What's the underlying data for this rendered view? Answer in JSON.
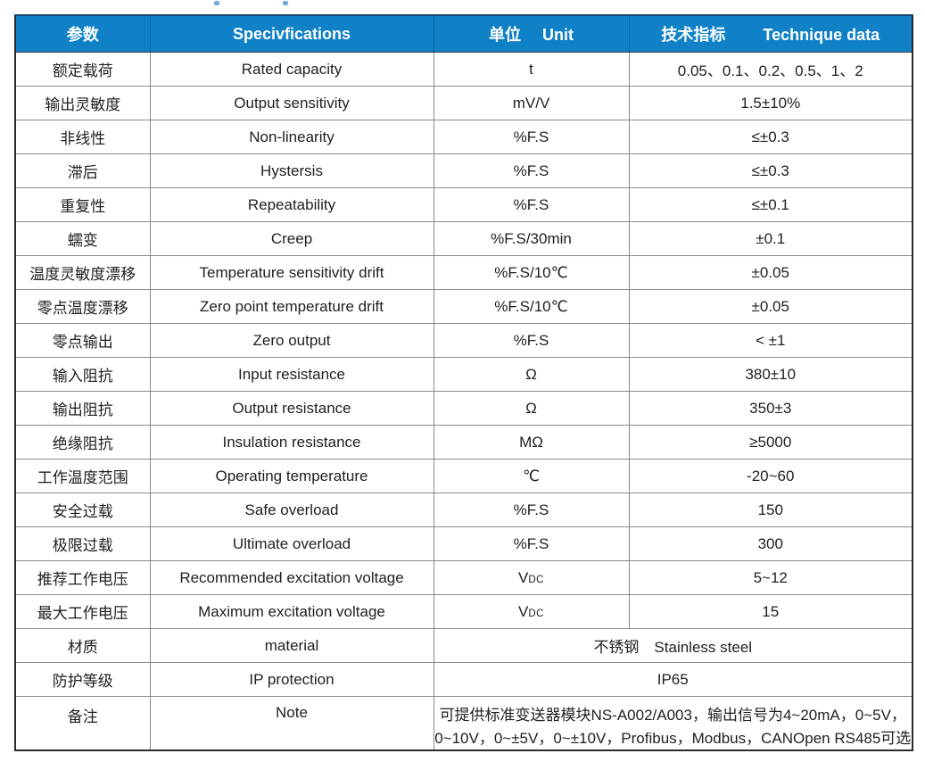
{
  "table": {
    "colors": {
      "header_bg": "#1081c6",
      "header_text": "#ffffff",
      "border_outer": "#2b2b2b",
      "border_inner": "#8a8a8a",
      "body_text": "#212121"
    },
    "header": {
      "param_zh": "参数",
      "spec_en": "Specivfications",
      "unit_zh": "单位",
      "unit_en": "Unit",
      "tech_zh": "技术指标",
      "tech_en": "Technique data"
    },
    "rows": [
      {
        "zh": "额定载荷",
        "en": "Rated capacity",
        "unit": "t",
        "value": "0.05、0.1、0.2、0.5、1、2"
      },
      {
        "zh": "输出灵敏度",
        "en": "Output sensitivity",
        "unit": "mV/V",
        "value": "1.5±10%"
      },
      {
        "zh": "非线性",
        "en": "Non-linearity",
        "unit": "%F.S",
        "value": "≤±0.3"
      },
      {
        "zh": "滞后",
        "en": "Hystersis",
        "unit": "%F.S",
        "value": "≤±0.3"
      },
      {
        "zh": "重复性",
        "en": "Repeatability",
        "unit": "%F.S",
        "value": "≤±0.1"
      },
      {
        "zh": "蠕变",
        "en": "Creep",
        "unit": "%F.S/30min",
        "value": "±0.1"
      },
      {
        "zh": "温度灵敏度漂移",
        "en": "Temperature sensitivity drift",
        "unit": "%F.S/10℃",
        "value": "±0.05"
      },
      {
        "zh": "零点温度漂移",
        "en": "Zero point temperature drift",
        "unit": "%F.S/10℃",
        "value": "±0.05"
      },
      {
        "zh": "零点输出",
        "en": "Zero output",
        "unit": "%F.S",
        "value": "< ±1"
      },
      {
        "zh": "输入阻抗",
        "en": "Input resistance",
        "unit": "Ω",
        "value": "380±10"
      },
      {
        "zh": "输出阻抗",
        "en": "Output resistance",
        "unit": "Ω",
        "value": "350±3"
      },
      {
        "zh": "绝缘阻抗",
        "en": "Insulation resistance",
        "unit": "MΩ",
        "value": "≥5000"
      },
      {
        "zh": "工作温度范围",
        "en": "Operating temperature",
        "unit": "℃",
        "value": "-20~60"
      },
      {
        "zh": "安全过载",
        "en": "Safe overload",
        "unit": "%F.S",
        "value": "150"
      },
      {
        "zh": "极限过载",
        "en": "Ultimate overload",
        "unit": "%F.S",
        "value": "300"
      },
      {
        "zh": "推荐工作电压",
        "en": "Recommended excitation voltage",
        "unit": "V",
        "unit_sub": "DC",
        "value": "5~12"
      },
      {
        "zh": "最大工作电压",
        "en": "Maximum excitation voltage",
        "unit": "V",
        "unit_sub": "DC",
        "value": "15"
      },
      {
        "zh": "材质",
        "en": "material",
        "merged": true,
        "value": "不锈钢　Stainless steel"
      },
      {
        "zh": "防护等级",
        "en": "IP protection",
        "merged": true,
        "value": "IP65"
      },
      {
        "zh": "备注",
        "en": "Note",
        "merged": true,
        "note": true,
        "value_lines": [
          "可提供标准变送器模块NS-A002/A003，输出信号为4~20mA，0~5V，",
          "0~10V，0~±5V，0~±10V，Profibus，Modbus，CANOpen RS485可选"
        ]
      }
    ]
  }
}
